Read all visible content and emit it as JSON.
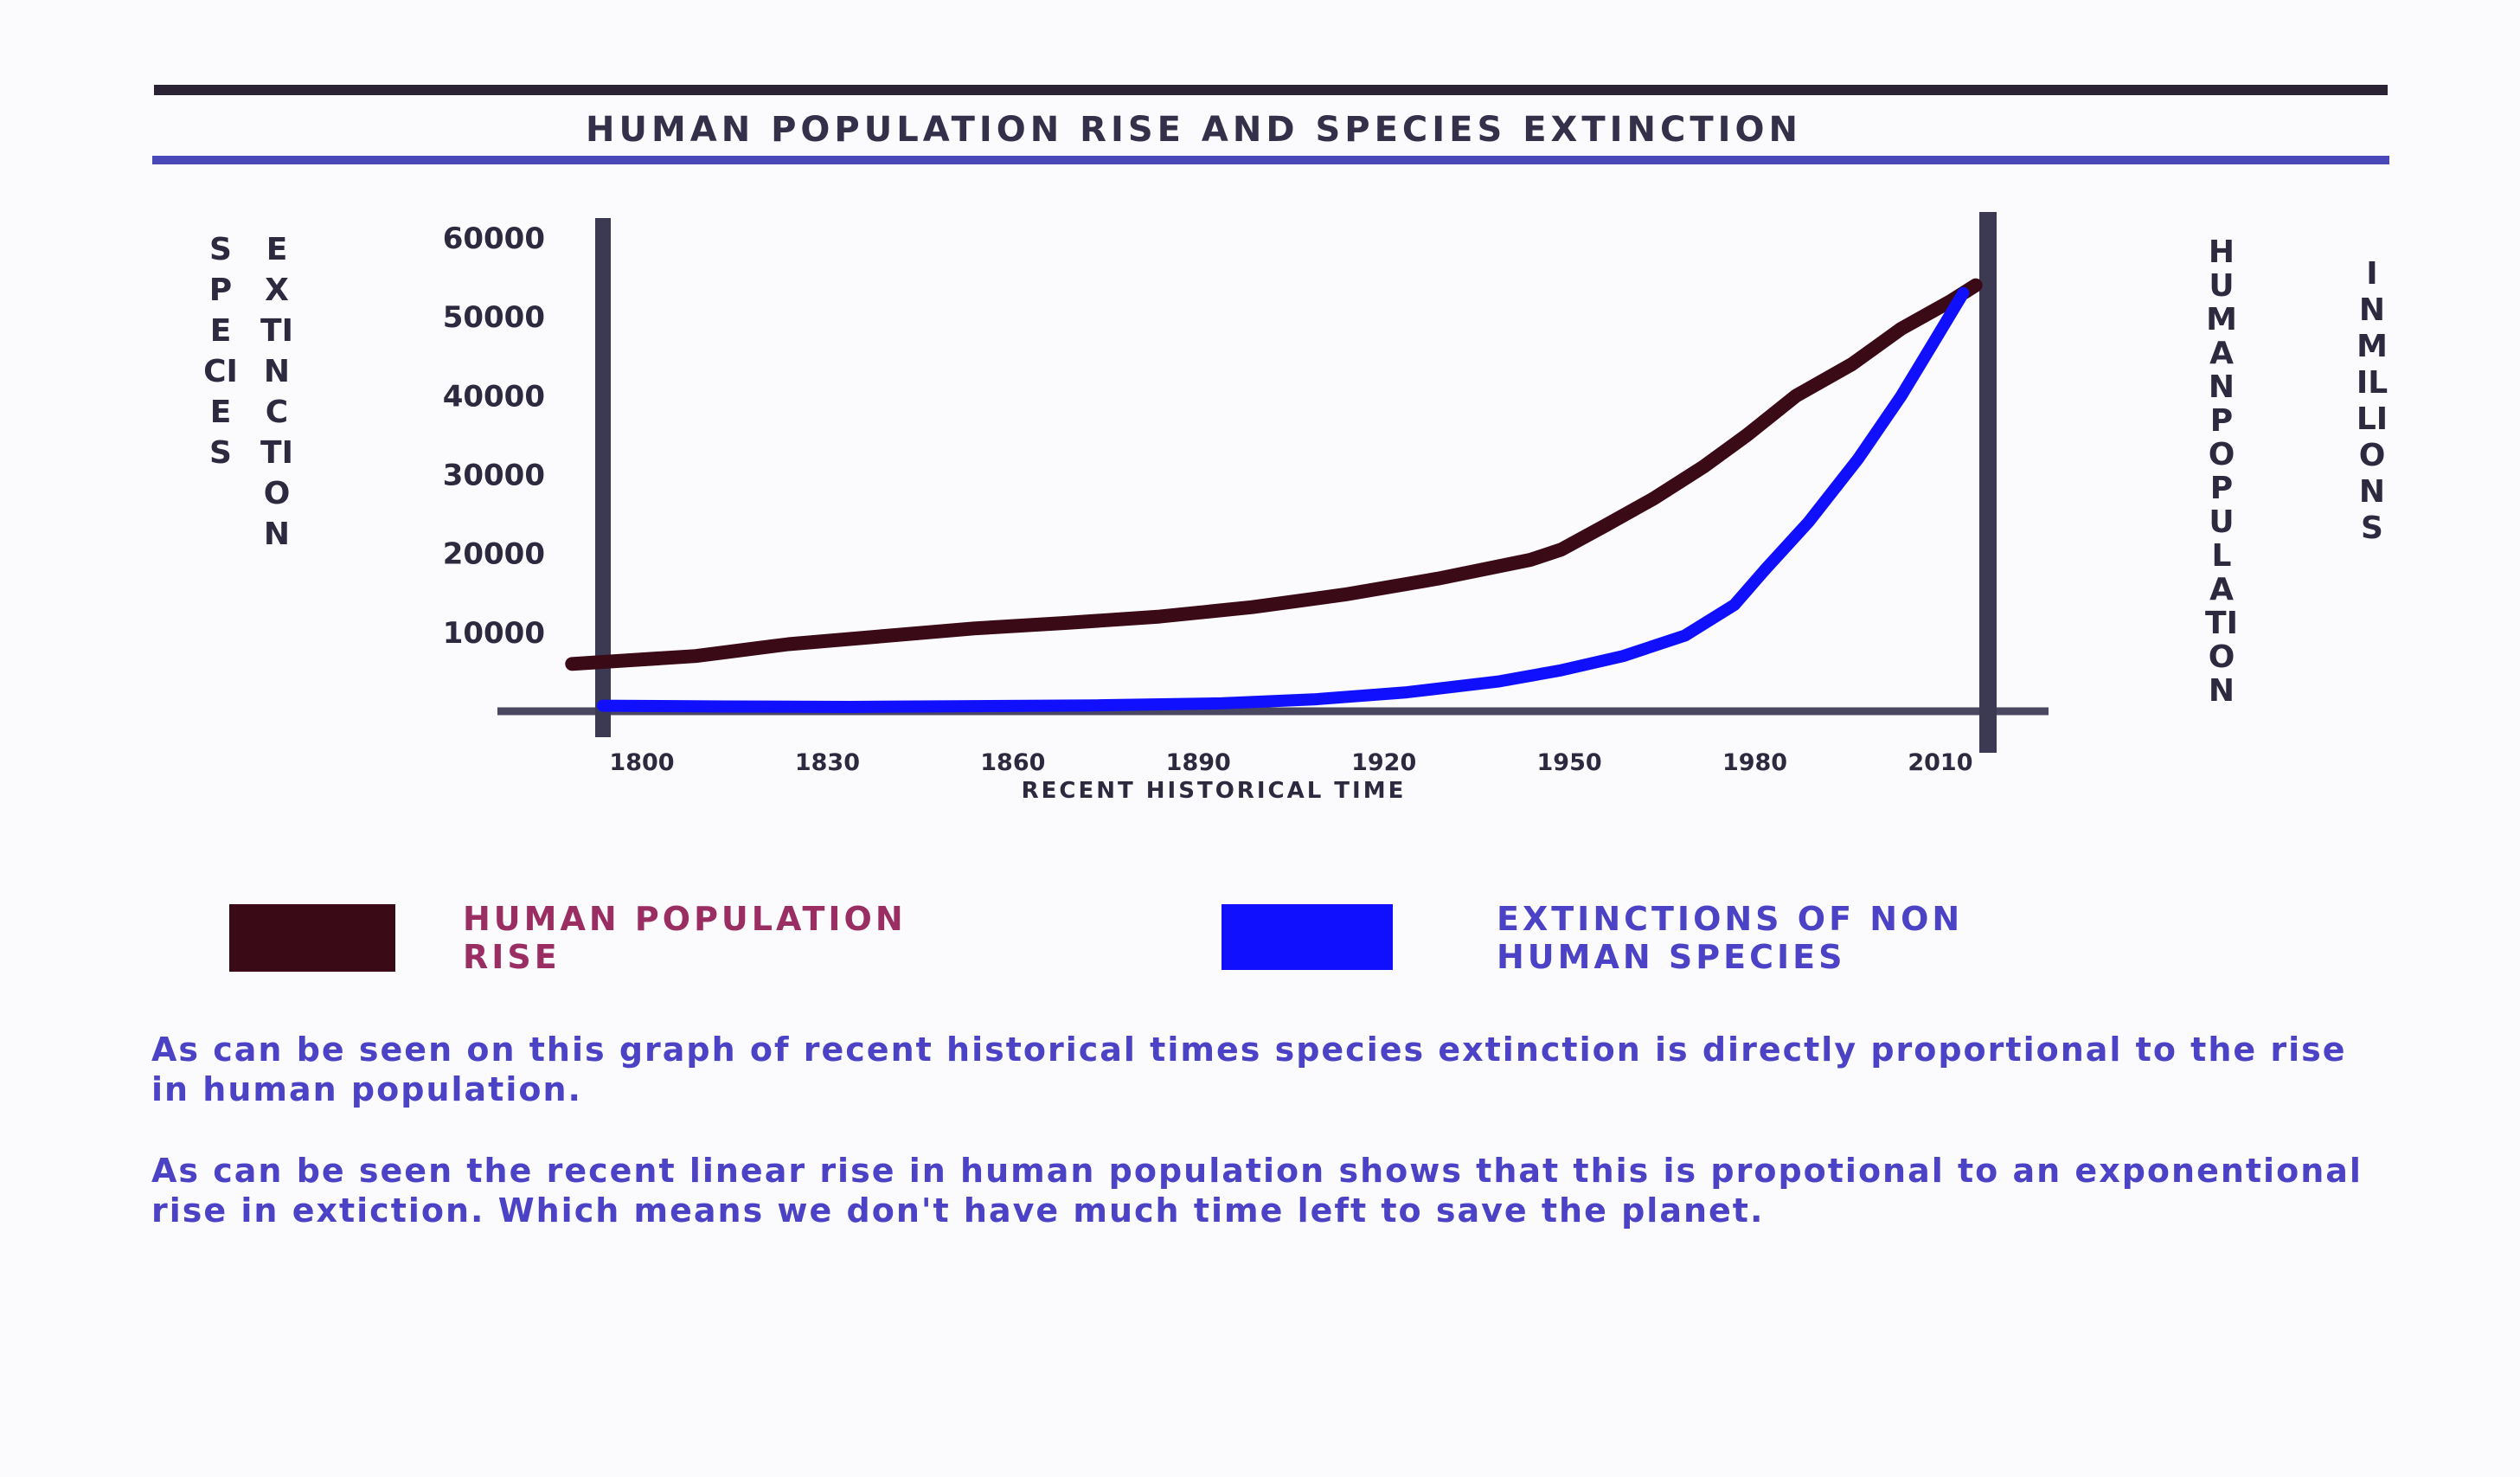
{
  "title": "HUMAN POPULATION RISE AND SPECIES EXTINCTION",
  "left_axis_labels": {
    "species": "SPECIES",
    "extinction": "EXTINCTION"
  },
  "right_axis_labels": {
    "human_population": "HUMAN POPULATION",
    "in_millions": "IN MILLIONS"
  },
  "legend": [
    {
      "label_line1": "HUMAN POPULATION",
      "label_line2": "RISE",
      "color": "#3a0a16",
      "text_color": "#9a2d62"
    },
    {
      "label_line1": "EXTINCTIONS OF NON",
      "label_line2": "HUMAN SPECIES",
      "color": "#1010ff",
      "text_color": "#4b42c6"
    }
  ],
  "paragraphs": [
    "As can be seen on this graph of recent historical times species extinction  is directly proportional to the rise in human population.",
    "As can be seen the recent linear rise in human population shows that this is propotional to an exponentional rise in extiction. Which means we don't have much time left to save the planet."
  ],
  "chart_data": {
    "type": "line",
    "title": "HUMAN POPULATION RISE AND SPECIES EXTINCTION",
    "xlabel": "RECENT HISTORICAL TIME",
    "ylabel": "SPECIES EXTINCTION",
    "y2label": "HUMAN POPULATION IN MILLIONS",
    "x_ticks": [
      "1800",
      "1830",
      "1860",
      "1890",
      "1920",
      "1950",
      "1980",
      "2010"
    ],
    "y_ticks": [
      "10000",
      "20000",
      "30000",
      "40000",
      "50000",
      "60000"
    ],
    "xlim": [
      1800,
      2024
    ],
    "ylim": [
      0,
      60000
    ],
    "series": [
      {
        "name": "HUMAN POPULATION RISE",
        "color": "#3a0a16",
        "x": [
          1795,
          1815,
          1830,
          1845,
          1860,
          1875,
          1890,
          1905,
          1920,
          1935,
          1950,
          1955,
          1962,
          1970,
          1978,
          1985,
          1993,
          2002,
          2010,
          2018,
          2022
        ],
        "values": [
          6000,
          7000,
          8500,
          9500,
          10500,
          11200,
          12000,
          13200,
          14800,
          16800,
          19200,
          20500,
          23500,
          27000,
          31000,
          35000,
          40000,
          44000,
          48500,
          52000,
          54000
        ]
      },
      {
        "name": "EXTINCTIONS OF NON HUMAN SPECIES",
        "color": "#1010ff",
        "x": [
          1800,
          1820,
          1840,
          1860,
          1880,
          1900,
          1915,
          1930,
          1945,
          1955,
          1965,
          1975,
          1983,
          1988,
          1995,
          2003,
          2010,
          2015,
          2020
        ],
        "values": [
          700,
          600,
          550,
          650,
          750,
          1000,
          1500,
          2400,
          3800,
          5200,
          7000,
          9600,
          13500,
          18000,
          24000,
          32000,
          40000,
          46500,
          53000
        ]
      }
    ],
    "grid": false,
    "legend_position": "bottom"
  }
}
